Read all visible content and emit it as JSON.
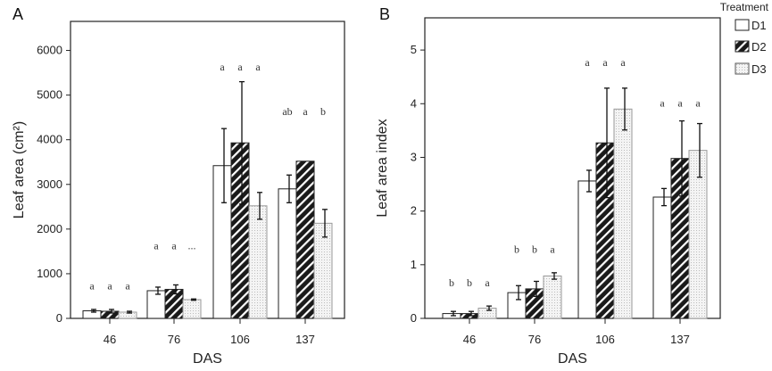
{
  "chart_data": [
    {
      "type": "bar",
      "panel_label": "A",
      "xlabel": "DAS",
      "ylabel": "Leaf area (cm²)",
      "categories": [
        "46",
        "76",
        "106",
        "137"
      ],
      "ylim": [
        0,
        6650
      ],
      "yticks": [
        0,
        1000,
        2000,
        3000,
        4000,
        5000,
        6000
      ],
      "series": [
        {
          "name": "D1",
          "values": [
            170,
            620,
            3420,
            2900
          ],
          "errors": [
            30,
            80,
            830,
            310
          ]
        },
        {
          "name": "D2",
          "values": [
            160,
            650,
            3930,
            3520
          ],
          "errors": [
            40,
            100,
            1370,
            0
          ]
        },
        {
          "name": "D3",
          "values": [
            140,
            420,
            2520,
            2130
          ],
          "errors": [
            20,
            15,
            300,
            310
          ]
        }
      ],
      "letters": [
        [
          "a",
          "a",
          "a"
        ],
        [
          "a",
          "a",
          "..."
        ],
        [
          "a",
          "a",
          "a"
        ],
        [
          "ab",
          "a",
          "b"
        ]
      ],
      "letter_levels": [
        650,
        1550,
        5550,
        4550
      ]
    },
    {
      "type": "bar",
      "panel_label": "B",
      "xlabel": "DAS",
      "ylabel": "Leaf area index",
      "categories": [
        "46",
        "76",
        "106",
        "137"
      ],
      "ylim": [
        0,
        5.6
      ],
      "yticks": [
        0,
        1,
        2,
        3,
        4,
        5
      ],
      "series": [
        {
          "name": "D1",
          "values": [
            0.09,
            0.48,
            2.56,
            2.26
          ],
          "errors": [
            0.04,
            0.13,
            0.2,
            0.16
          ]
        },
        {
          "name": "D2",
          "values": [
            0.09,
            0.55,
            3.27,
            2.98
          ],
          "errors": [
            0.04,
            0.14,
            1.02,
            0.7
          ]
        },
        {
          "name": "D3",
          "values": [
            0.19,
            0.79,
            3.9,
            3.13
          ],
          "errors": [
            0.04,
            0.06,
            0.39,
            0.5
          ]
        }
      ],
      "letters": [
        [
          "b",
          "b",
          "a"
        ],
        [
          "b",
          "b",
          "a"
        ],
        [
          "a",
          "a",
          "a"
        ],
        [
          "a",
          "a",
          "a"
        ]
      ],
      "letter_levels": [
        0.6,
        1.22,
        4.7,
        3.95
      ]
    }
  ],
  "legend": {
    "title": "Treatment",
    "items": [
      "D1",
      "D2",
      "D3"
    ]
  },
  "colors": {
    "D1": "#ffffff",
    "D2": "#1a1a1a",
    "D3": "#e6e6e6",
    "axis": "#222222"
  }
}
